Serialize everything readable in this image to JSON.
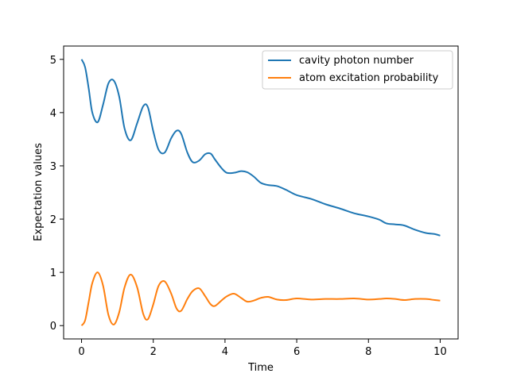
{
  "chart_data": {
    "type": "line",
    "title": "",
    "xlabel": "Time",
    "ylabel": "Expectation values",
    "xlim": [
      -0.5,
      10.5
    ],
    "ylim": [
      -0.25,
      5.25
    ],
    "xticks": [
      "0",
      "2",
      "4",
      "6",
      "8",
      "10"
    ],
    "yticks": [
      "0",
      "1",
      "2",
      "3",
      "4",
      "5"
    ],
    "grid": false,
    "legend": "top-right",
    "series": [
      {
        "name": "cavity photon number",
        "color": "#1f77b4",
        "x": [
          0,
          0.1,
          0.2,
          0.3,
          0.45,
          0.6,
          0.75,
          0.9,
          1.05,
          1.2,
          1.37,
          1.55,
          1.72,
          1.85,
          2.0,
          2.15,
          2.32,
          2.5,
          2.65,
          2.78,
          2.95,
          3.1,
          3.28,
          3.45,
          3.6,
          3.72,
          3.9,
          4.05,
          4.25,
          4.45,
          4.62,
          4.8,
          5.0,
          5.2,
          5.45,
          5.7,
          6.0,
          6.4,
          6.8,
          7.2,
          7.6,
          8.0,
          8.3,
          8.5,
          8.75,
          9.0,
          9.3,
          9.6,
          9.85,
          10.0
        ],
        "y": [
          5.0,
          4.85,
          4.45,
          4.0,
          3.82,
          4.15,
          4.55,
          4.6,
          4.3,
          3.7,
          3.48,
          3.8,
          4.12,
          4.1,
          3.65,
          3.3,
          3.25,
          3.52,
          3.66,
          3.6,
          3.25,
          3.07,
          3.1,
          3.22,
          3.23,
          3.12,
          2.96,
          2.87,
          2.87,
          2.9,
          2.88,
          2.8,
          2.68,
          2.64,
          2.62,
          2.55,
          2.45,
          2.38,
          2.28,
          2.2,
          2.11,
          2.05,
          1.99,
          1.92,
          1.9,
          1.88,
          1.8,
          1.74,
          1.72,
          1.69
        ]
      },
      {
        "name": "atom excitation probability",
        "color": "#ff7f0e",
        "x": [
          0,
          0.1,
          0.2,
          0.3,
          0.45,
          0.6,
          0.75,
          0.9,
          1.05,
          1.2,
          1.37,
          1.55,
          1.72,
          1.85,
          2.0,
          2.15,
          2.32,
          2.5,
          2.65,
          2.78,
          2.95,
          3.1,
          3.28,
          3.45,
          3.6,
          3.72,
          3.9,
          4.05,
          4.25,
          4.45,
          4.62,
          4.8,
          5.0,
          5.2,
          5.45,
          5.7,
          6.0,
          6.4,
          6.8,
          7.2,
          7.6,
          8.0,
          8.3,
          8.5,
          8.75,
          9.0,
          9.3,
          9.6,
          9.85,
          10.0
        ],
        "y": [
          0.0,
          0.1,
          0.45,
          0.8,
          1.0,
          0.75,
          0.2,
          0.02,
          0.25,
          0.72,
          0.96,
          0.72,
          0.22,
          0.12,
          0.4,
          0.75,
          0.83,
          0.6,
          0.32,
          0.28,
          0.5,
          0.65,
          0.7,
          0.55,
          0.4,
          0.37,
          0.47,
          0.55,
          0.6,
          0.52,
          0.45,
          0.47,
          0.52,
          0.54,
          0.49,
          0.48,
          0.51,
          0.49,
          0.5,
          0.5,
          0.51,
          0.49,
          0.5,
          0.51,
          0.5,
          0.48,
          0.5,
          0.5,
          0.48,
          0.47
        ]
      }
    ]
  }
}
